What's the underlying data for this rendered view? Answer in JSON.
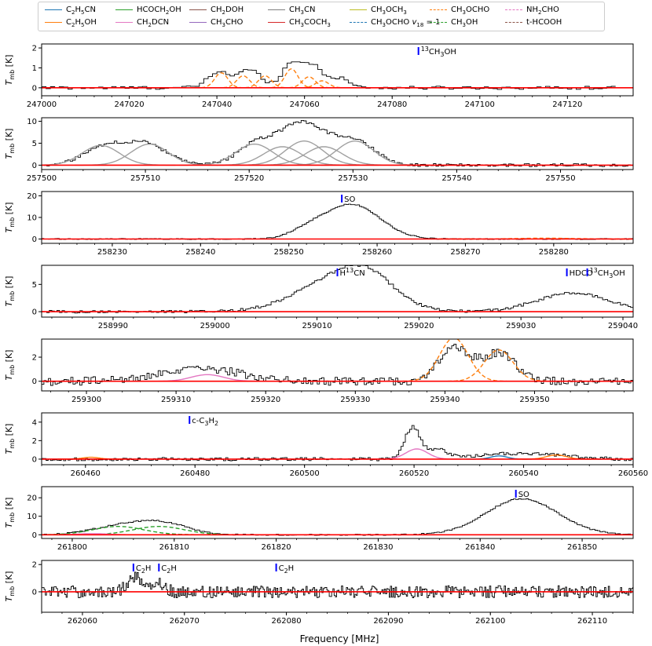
{
  "xlabel": "Frequency [MHz]",
  "ylabel": "T_mb [K]",
  "legend": [
    {
      "label": "C2H5CN",
      "color": "#1f77b4",
      "dash": false
    },
    {
      "label": "C2H5OH",
      "color": "#ff7f0e",
      "dash": false
    },
    {
      "label": "HCOCH2OH",
      "color": "#2ca02c",
      "dash": false
    },
    {
      "label": "CH2DCN",
      "color": "#e377c2",
      "dash": false
    },
    {
      "label": "CH2DOH",
      "color": "#8c564b",
      "dash": false
    },
    {
      "label": "CH3CHO",
      "color": "#9467bd",
      "dash": false
    },
    {
      "label": "CH3CN",
      "color": "#7f7f7f",
      "dash": false
    },
    {
      "label": "CH3COCH3",
      "color": "#d62728",
      "dash": false
    },
    {
      "label": "CH3OCH3",
      "color": "#bcbd22",
      "dash": false
    },
    {
      "label": "CH3OCHO v18 = 1",
      "color": "#1f77b4",
      "dash": true
    },
    {
      "label": "CH3OCHO",
      "color": "#ff7f0e",
      "dash": true
    },
    {
      "label": "CH3OH",
      "color": "#2ca02c",
      "dash": true
    },
    {
      "label": "NH2CHO",
      "color": "#e377c2",
      "dash": true
    },
    {
      "label": "t-HCOOH",
      "color": "#8c564b",
      "dash": true
    }
  ],
  "colors": {
    "observed": "#000000",
    "fit": "#ff0000",
    "marker": "#0000ff",
    "ch3cn": "#a0a0a0",
    "ch3ocho": "#ff7f0e"
  },
  "chart_data": [
    {
      "type": "line",
      "xlim": [
        247000,
        247135
      ],
      "ylim": [
        -0.4,
        2.2
      ],
      "xticks": [
        247000,
        247020,
        247040,
        247060,
        247080,
        247100,
        247120
      ],
      "yticks": [
        0,
        1,
        2
      ],
      "lines": [
        {
          "freq": 247086,
          "label": "13CH3OH"
        }
      ],
      "bumps": [
        [
          247040,
          0.8,
          2.5
        ],
        [
          247047,
          0.9,
          2.5
        ],
        [
          247057,
          1.3,
          2.5
        ],
        [
          247062,
          1.0,
          2
        ],
        [
          247068,
          0.5,
          2
        ]
      ],
      "models": [
        {
          "name": "CH3OCHO",
          "color": "#ff7f0e",
          "dash": true,
          "gauss": [
            [
              247041,
              0.75,
              1.5
            ],
            [
              247046,
              0.6,
              1.5
            ],
            [
              247051,
              0.6,
              1.5
            ],
            [
              247057,
              0.95,
              1.5
            ],
            [
              247061,
              0.55,
              1.5
            ],
            [
              247064,
              0.35,
              1.5
            ]
          ]
        }
      ],
      "noise": 0.08,
      "step": 1.0,
      "xmax_data": 247130
    },
    {
      "type": "line",
      "xlim": [
        257500,
        257557
      ],
      "ylim": [
        -1,
        10.8
      ],
      "xticks": [
        257500,
        257510,
        257520,
        257530,
        257540,
        257550
      ],
      "yticks": [
        0,
        5,
        10
      ],
      "lines": [],
      "bumps": [
        [
          257506,
          4.2,
          2
        ],
        [
          257510,
          4.6,
          2
        ],
        [
          257520.5,
          4.5,
          1.8
        ],
        [
          257525,
          9.5,
          2.2
        ],
        [
          257530,
          5.5,
          2
        ]
      ],
      "models": [
        {
          "name": "CH3CN",
          "color": "#a0a0a0",
          "dash": false,
          "gauss": [
            [
              257505.7,
              4.5,
              1.8
            ],
            [
              257510.4,
              4.8,
              1.8
            ],
            [
              257520.5,
              4.8,
              1.8
            ],
            [
              257523.2,
              4.2,
              1.8
            ],
            [
              257525.3,
              5.5,
              1.8
            ],
            [
              257527.2,
              4.2,
              1.8
            ],
            [
              257530.2,
              5.5,
              1.8
            ]
          ]
        }
      ],
      "noise": 0.35,
      "step": 0.25,
      "xmax_data": 257557
    },
    {
      "type": "line",
      "xlim": [
        258222,
        258289
      ],
      "ylim": [
        -2,
        22
      ],
      "xticks": [
        258230,
        258240,
        258250,
        258260,
        258270,
        258280
      ],
      "yticks": [
        0,
        10,
        20
      ],
      "lines": [
        {
          "freq": 258256,
          "label": "SO"
        }
      ],
      "bumps": [
        [
          258257,
          16,
          3.2
        ],
        [
          258252,
          3,
          2
        ]
      ],
      "models": [
        {
          "name": "CH3OCHO",
          "color": "#ff7f0e",
          "dash": true,
          "gauss": [
            [
              258279,
              0.4,
              3
            ]
          ]
        }
      ],
      "noise": 0.25,
      "step": 0.25,
      "xmax_data": 258289
    },
    {
      "type": "line",
      "xlim": [
        258983,
        259041
      ],
      "ylim": [
        -1,
        8.5
      ],
      "xticks": [
        258990,
        259000,
        259010,
        259020,
        259030,
        259040
      ],
      "yticks": [
        0,
        5
      ],
      "lines": [
        {
          "freq": 259012,
          "label": "H13CN"
        },
        {
          "freq": 259034.5,
          "label": "HDCO"
        },
        {
          "freq": 259036.5,
          "label": "13CH3OH"
        }
      ],
      "bumps": [
        [
          259012,
          6.0,
          4.0
        ],
        [
          259015,
          3.5,
          2.5
        ],
        [
          259035,
          3.4,
          3.5
        ]
      ],
      "models": [],
      "noise": 0.25,
      "step": 0.25,
      "xmax_data": 259041
    },
    {
      "type": "line",
      "xlim": [
        259295,
        259361
      ],
      "ylim": [
        -0.8,
        3.5
      ],
      "xticks": [
        259300,
        259310,
        259320,
        259330,
        259340,
        259350
      ],
      "yticks": [
        0,
        2
      ],
      "lines": [],
      "bumps": [
        [
          259313,
          1.0,
          4.5
        ],
        [
          259341,
          2.8,
          1.8
        ],
        [
          259346,
          2.3,
          1.8
        ]
      ],
      "models": [
        {
          "name": "CH2DCN",
          "color": "#e377c2",
          "dash": false,
          "gauss": [
            [
              259313.5,
              0.55,
              1.8
            ]
          ]
        },
        {
          "name": "CH3OCHO",
          "color": "#ff7f0e",
          "dash": true,
          "gauss": [
            [
              259341,
              3.6,
              1.6
            ],
            [
              259346,
              2.6,
              1.6
            ]
          ]
        }
      ],
      "noise": 0.35,
      "step": 0.25,
      "xmax_data": 259361
    },
    {
      "type": "line",
      "xlim": [
        260452,
        260560
      ],
      "ylim": [
        -0.6,
        5.0
      ],
      "xticks": [
        260460,
        260480,
        260500,
        260520,
        260540,
        260560
      ],
      "yticks": [
        0,
        2,
        4
      ],
      "lines": [
        {
          "freq": 260479,
          "label": "c-C3H2"
        }
      ],
      "bumps": [
        [
          260519.5,
          3.4,
          1.4
        ],
        [
          260524,
          1.0,
          2
        ],
        [
          260535,
          0.5,
          5
        ],
        [
          260545,
          0.4,
          5
        ]
      ],
      "models": [
        {
          "name": "CH2DCN",
          "color": "#e377c2",
          "dash": false,
          "gauss": [
            [
              260520.5,
              1.1,
              2.0
            ]
          ]
        },
        {
          "name": "C2H5CN",
          "color": "#1f77b4",
          "dash": false,
          "gauss": [
            [
              260535.5,
              0.35,
              1.5
            ]
          ]
        },
        {
          "name": "C2H5OH",
          "color": "#ff7f0e",
          "dash": false,
          "gauss": [
            [
              260461,
              0.2,
              1.5
            ],
            [
              260546,
              0.45,
              1.8
            ]
          ]
        }
      ],
      "noise": 0.18,
      "step": 0.4,
      "xmax_data": 260560
    },
    {
      "type": "line",
      "xlim": [
        261797,
        261855
      ],
      "ylim": [
        -2,
        26
      ],
      "xticks": [
        261800,
        261810,
        261820,
        261830,
        261840,
        261850
      ],
      "yticks": [
        0,
        10,
        20
      ],
      "lines": [
        {
          "freq": 261843.5,
          "label": "SO"
        }
      ],
      "bumps": [
        [
          261805,
          5,
          3
        ],
        [
          261809,
          5,
          2.5
        ],
        [
          261844,
          19.5,
          3.5
        ]
      ],
      "models": [
        {
          "name": "CH3OH",
          "color": "#2ca02c",
          "dash": true,
          "gauss": [
            [
              261804.5,
              4.5,
              2.5
            ],
            [
              261808.5,
              4.5,
              2.5
            ]
          ]
        },
        {
          "name": "CH2DCN",
          "color": "#e377c2",
          "dash": false,
          "gauss": [
            [
              261802,
              0.6,
              1.5
            ]
          ]
        }
      ],
      "noise": 0.35,
      "step": 0.25,
      "xmax_data": 261855
    },
    {
      "type": "line",
      "xlim": [
        262056,
        262114
      ],
      "ylim": [
        -1.5,
        2.3
      ],
      "xticks": [
        262060,
        262070,
        262080,
        262090,
        262100,
        262110
      ],
      "yticks": [
        0,
        2
      ],
      "lines": [
        {
          "freq": 262065,
          "label": "C2H"
        },
        {
          "freq": 262067.5,
          "label": "C2H"
        },
        {
          "freq": 262079,
          "label": "C2H"
        }
      ],
      "bumps": [
        [
          262065,
          1.1,
          0.7
        ],
        [
          262067.5,
          0.6,
          0.6
        ]
      ],
      "models": [],
      "noise": 0.45,
      "step": 0.12,
      "xmax_data": 262114
    }
  ]
}
